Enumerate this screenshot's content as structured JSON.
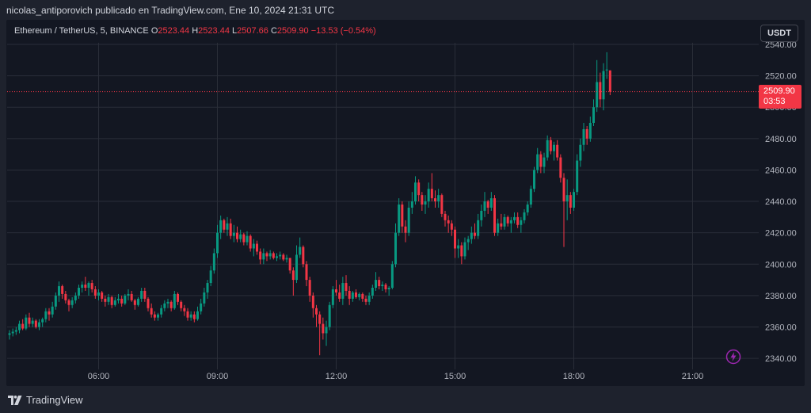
{
  "header": {
    "credit": "nicolas_antiporovich publicado en TradingView.com, Ene 10, 2024 21:31 UTC"
  },
  "legend": {
    "symbol": "Ethereum / TetherUS, 5, BINANCE",
    "o_label": "O",
    "o_value": "2523.44",
    "h_label": "H",
    "h_value": "2523.44",
    "l_label": "L",
    "l_value": "2507.66",
    "c_label": "C",
    "c_value": "2509.90",
    "change": "−13.53 (−0.54%)"
  },
  "toolbar": {
    "currency_label": "USDT"
  },
  "price_tag": {
    "price": "2509.90",
    "countdown": "03:53"
  },
  "footer": {
    "brand": "TradingView"
  },
  "colors": {
    "background": "#131722",
    "up": "#089981",
    "down": "#f23645",
    "grid": "#2a2e39",
    "alert_icon": "#9c27b0"
  },
  "icons": {
    "alert": "lightning-icon",
    "logo": "tradingview-logo-icon"
  },
  "chart_data": {
    "type": "candlestick",
    "grid": true,
    "ylim": [
      2333,
      2541
    ],
    "y_ticks": [
      2340,
      2360,
      2380,
      2400,
      2420,
      2440,
      2460,
      2480,
      2500,
      2520,
      2540
    ],
    "x_tick_labels": [
      "06:00",
      "09:00",
      "12:00",
      "15:00",
      "18:00",
      "21:00"
    ],
    "x_tick_index": [
      27,
      63,
      99,
      135,
      171,
      207
    ],
    "last_price": 2509.9,
    "candles": [
      [
        2355.0,
        2358.0,
        2352.0,
        2356.0
      ],
      [
        2356.0,
        2359.0,
        2354.0,
        2357.0
      ],
      [
        2357.0,
        2360.0,
        2355.0,
        2358.0
      ],
      [
        2358.0,
        2364.0,
        2356.0,
        2362.0
      ],
      [
        2362.0,
        2365.0,
        2358.0,
        2359.0
      ],
      [
        2359.0,
        2368.0,
        2358.0,
        2366.0
      ],
      [
        2366.0,
        2369.0,
        2360.0,
        2362.0
      ],
      [
        2362.0,
        2366.0,
        2360.0,
        2364.0
      ],
      [
        2364.0,
        2365.0,
        2359.0,
        2360.0
      ],
      [
        2360.0,
        2365.0,
        2358.0,
        2363.0
      ],
      [
        2363.0,
        2366.0,
        2360.0,
        2365.0
      ],
      [
        2365.0,
        2372.0,
        2363.0,
        2370.0
      ],
      [
        2370.0,
        2372.0,
        2364.0,
        2368.0
      ],
      [
        2368.0,
        2376.0,
        2366.0,
        2373.0
      ],
      [
        2373.0,
        2382.0,
        2371.0,
        2380.0
      ],
      [
        2380.0,
        2389.0,
        2376.0,
        2386.0
      ],
      [
        2386.0,
        2387.0,
        2378.0,
        2381.0
      ],
      [
        2381.0,
        2383.0,
        2375.0,
        2377.0
      ],
      [
        2377.0,
        2378.0,
        2370.0,
        2374.0
      ],
      [
        2374.0,
        2379.0,
        2372.0,
        2377.0
      ],
      [
        2377.0,
        2382.0,
        2375.0,
        2380.0
      ],
      [
        2380.0,
        2387.0,
        2378.0,
        2385.0
      ],
      [
        2385.0,
        2389.0,
        2382.0,
        2387.0
      ],
      [
        2387.0,
        2392.0,
        2383.0,
        2385.0
      ],
      [
        2385.0,
        2389.0,
        2380.0,
        2388.0
      ],
      [
        2388.0,
        2390.0,
        2382.0,
        2384.0
      ],
      [
        2384.0,
        2386.0,
        2378.0,
        2380.0
      ],
      [
        2380.0,
        2384.0,
        2377.0,
        2382.0
      ],
      [
        2382.0,
        2383.0,
        2376.0,
        2378.0
      ],
      [
        2378.0,
        2380.0,
        2373.0,
        2376.0
      ],
      [
        2376.0,
        2381.0,
        2374.0,
        2379.0
      ],
      [
        2379.0,
        2380.0,
        2372.0,
        2374.0
      ],
      [
        2374.0,
        2379.0,
        2373.0,
        2377.0
      ],
      [
        2377.0,
        2381.0,
        2375.0,
        2378.0
      ],
      [
        2378.0,
        2380.0,
        2373.0,
        2375.0
      ],
      [
        2375.0,
        2381.0,
        2374.0,
        2380.0
      ],
      [
        2380.0,
        2384.0,
        2377.0,
        2381.0
      ],
      [
        2381.0,
        2383.0,
        2376.0,
        2377.0
      ],
      [
        2377.0,
        2378.0,
        2371.0,
        2374.0
      ],
      [
        2374.0,
        2379.0,
        2373.0,
        2378.0
      ],
      [
        2378.0,
        2385.0,
        2376.0,
        2383.0
      ],
      [
        2383.0,
        2385.0,
        2376.0,
        2378.0
      ],
      [
        2378.0,
        2379.0,
        2370.0,
        2372.0
      ],
      [
        2372.0,
        2375.0,
        2366.0,
        2368.0
      ],
      [
        2368.0,
        2370.0,
        2364.0,
        2366.0
      ],
      [
        2366.0,
        2369.0,
        2364.0,
        2368.0
      ],
      [
        2368.0,
        2374.0,
        2366.0,
        2372.0
      ],
      [
        2372.0,
        2377.0,
        2370.0,
        2375.0
      ],
      [
        2375.0,
        2378.0,
        2372.0,
        2376.0
      ],
      [
        2376.0,
        2377.0,
        2370.0,
        2372.0
      ],
      [
        2372.0,
        2383.0,
        2371.0,
        2381.0
      ],
      [
        2381.0,
        2382.0,
        2374.0,
        2376.0
      ],
      [
        2376.0,
        2377.0,
        2370.0,
        2372.0
      ],
      [
        2372.0,
        2374.0,
        2367.0,
        2370.0
      ],
      [
        2370.0,
        2372.0,
        2364.0,
        2366.0
      ],
      [
        2366.0,
        2370.0,
        2364.0,
        2368.0
      ],
      [
        2368.0,
        2370.0,
        2363.0,
        2365.0
      ],
      [
        2365.0,
        2373.0,
        2364.0,
        2370.0
      ],
      [
        2370.0,
        2378.0,
        2368.0,
        2375.0
      ],
      [
        2375.0,
        2385.0,
        2373.0,
        2382.0
      ],
      [
        2382.0,
        2390.0,
        2378.0,
        2388.0
      ],
      [
        2388.0,
        2399.0,
        2386.0,
        2396.0
      ],
      [
        2396.0,
        2410.0,
        2394.0,
        2407.0
      ],
      [
        2407.0,
        2425.0,
        2404.0,
        2420.0
      ],
      [
        2420.0,
        2431.0,
        2416.0,
        2428.0
      ],
      [
        2428.0,
        2429.0,
        2420.0,
        2422.0
      ],
      [
        2422.0,
        2430.0,
        2418.0,
        2426.0
      ],
      [
        2426.0,
        2429.0,
        2416.0,
        2418.0
      ],
      [
        2418.0,
        2425.0,
        2414.0,
        2420.0
      ],
      [
        2420.0,
        2424.0,
        2414.0,
        2416.0
      ],
      [
        2416.0,
        2422.0,
        2414.0,
        2419.0
      ],
      [
        2419.0,
        2420.0,
        2412.0,
        2414.0
      ],
      [
        2414.0,
        2421.0,
        2412.0,
        2418.0
      ],
      [
        2418.0,
        2419.0,
        2408.0,
        2410.0
      ],
      [
        2410.0,
        2416.0,
        2405.0,
        2413.0
      ],
      [
        2413.0,
        2415.0,
        2406.0,
        2408.0
      ],
      [
        2408.0,
        2410.0,
        2400.0,
        2403.0
      ],
      [
        2403.0,
        2410.0,
        2400.0,
        2407.0
      ],
      [
        2407.0,
        2408.0,
        2402.0,
        2405.0
      ],
      [
        2405.0,
        2409.0,
        2403.0,
        2407.0
      ],
      [
        2407.0,
        2408.0,
        2403.0,
        2404.0
      ],
      [
        2404.0,
        2407.0,
        2402.0,
        2405.0
      ],
      [
        2405.0,
        2408.0,
        2403.0,
        2406.0
      ],
      [
        2406.0,
        2407.0,
        2402.0,
        2403.0
      ],
      [
        2403.0,
        2406.0,
        2401.0,
        2404.0
      ],
      [
        2404.0,
        2404.0,
        2394.0,
        2396.0
      ],
      [
        2396.0,
        2398.0,
        2380.0,
        2390.0
      ],
      [
        2390.0,
        2412.0,
        2388.0,
        2406.0
      ],
      [
        2406.0,
        2417.0,
        2404.0,
        2411.0
      ],
      [
        2411.0,
        2412.0,
        2398.0,
        2400.0
      ],
      [
        2400.0,
        2402.0,
        2386.0,
        2390.0
      ],
      [
        2390.0,
        2392.0,
        2376.0,
        2380.0
      ],
      [
        2380.0,
        2382.0,
        2366.0,
        2372.0
      ],
      [
        2372.0,
        2374.0,
        2360.0,
        2368.0
      ],
      [
        2368.0,
        2370.0,
        2342.0,
        2362.0
      ],
      [
        2362.0,
        2366.0,
        2352.0,
        2356.0
      ],
      [
        2356.0,
        2364.0,
        2348.0,
        2360.0
      ],
      [
        2360.0,
        2376.0,
        2358.0,
        2374.0
      ],
      [
        2374.0,
        2386.0,
        2372.0,
        2384.0
      ],
      [
        2384.0,
        2390.0,
        2380.0,
        2382.0
      ],
      [
        2382.0,
        2387.0,
        2376.0,
        2378.0
      ],
      [
        2378.0,
        2392.0,
        2374.0,
        2388.0
      ],
      [
        2388.0,
        2393.0,
        2380.0,
        2383.0
      ],
      [
        2383.0,
        2386.0,
        2374.0,
        2378.0
      ],
      [
        2378.0,
        2383.0,
        2376.0,
        2382.0
      ],
      [
        2382.0,
        2384.0,
        2378.0,
        2379.0
      ],
      [
        2379.0,
        2382.0,
        2377.0,
        2381.0
      ],
      [
        2381.0,
        2382.0,
        2376.0,
        2378.0
      ],
      [
        2378.0,
        2380.0,
        2374.0,
        2376.0
      ],
      [
        2376.0,
        2382.0,
        2374.0,
        2380.0
      ],
      [
        2380.0,
        2387.0,
        2378.0,
        2385.0
      ],
      [
        2385.0,
        2395.0,
        2383.0,
        2390.0
      ],
      [
        2390.0,
        2392.0,
        2384.0,
        2386.0
      ],
      [
        2386.0,
        2389.0,
        2383.0,
        2387.0
      ],
      [
        2387.0,
        2388.0,
        2382.0,
        2384.0
      ],
      [
        2384.0,
        2386.0,
        2380.0,
        2385.0
      ],
      [
        2385.0,
        2402.0,
        2384.0,
        2400.0
      ],
      [
        2400.0,
        2426.0,
        2398.0,
        2420.0
      ],
      [
        2420.0,
        2442.0,
        2418.0,
        2438.0
      ],
      [
        2438.0,
        2440.0,
        2420.0,
        2424.0
      ],
      [
        2424.0,
        2428.0,
        2414.0,
        2420.0
      ],
      [
        2420.0,
        2440.0,
        2418.0,
        2436.0
      ],
      [
        2436.0,
        2446.0,
        2432.0,
        2440.0
      ],
      [
        2440.0,
        2456.0,
        2438.0,
        2452.0
      ],
      [
        2452.0,
        2454.0,
        2440.0,
        2444.0
      ],
      [
        2444.0,
        2446.0,
        2434.0,
        2438.0
      ],
      [
        2438.0,
        2444.0,
        2432.0,
        2440.0
      ],
      [
        2440.0,
        2452.0,
        2436.0,
        2448.0
      ],
      [
        2448.0,
        2458.0,
        2440.0,
        2442.0
      ],
      [
        2442.0,
        2447.0,
        2436.0,
        2440.0
      ],
      [
        2440.0,
        2448.0,
        2436.0,
        2444.0
      ],
      [
        2444.0,
        2445.0,
        2430.0,
        2432.0
      ],
      [
        2432.0,
        2434.0,
        2424.0,
        2428.0
      ],
      [
        2428.0,
        2431.0,
        2420.0,
        2426.0
      ],
      [
        2426.0,
        2428.0,
        2418.0,
        2422.0
      ],
      [
        2422.0,
        2424.0,
        2404.0,
        2410.0
      ],
      [
        2410.0,
        2416.0,
        2404.0,
        2412.0
      ],
      [
        2412.0,
        2414.0,
        2400.0,
        2405.0
      ],
      [
        2405.0,
        2417.0,
        2403.0,
        2414.0
      ],
      [
        2414.0,
        2418.0,
        2409.0,
        2416.0
      ],
      [
        2416.0,
        2424.0,
        2413.0,
        2420.0
      ],
      [
        2420.0,
        2426.0,
        2416.0,
        2418.0
      ],
      [
        2418.0,
        2432.0,
        2416.0,
        2428.0
      ],
      [
        2428.0,
        2438.0,
        2424.0,
        2434.0
      ],
      [
        2434.0,
        2446.0,
        2430.0,
        2440.0
      ],
      [
        2440.0,
        2441.0,
        2432.0,
        2436.0
      ],
      [
        2436.0,
        2446.0,
        2434.0,
        2442.0
      ],
      [
        2442.0,
        2444.0,
        2418.0,
        2420.0
      ],
      [
        2420.0,
        2429.0,
        2418.0,
        2426.0
      ],
      [
        2426.0,
        2432.0,
        2422.0,
        2424.0
      ],
      [
        2424.0,
        2432.0,
        2422.0,
        2430.0
      ],
      [
        2430.0,
        2431.0,
        2424.0,
        2426.0
      ],
      [
        2426.0,
        2430.0,
        2420.0,
        2428.0
      ],
      [
        2428.0,
        2433.0,
        2426.0,
        2430.0
      ],
      [
        2430.0,
        2433.0,
        2423.0,
        2425.0
      ],
      [
        2425.0,
        2430.0,
        2420.0,
        2428.0
      ],
      [
        2428.0,
        2435.0,
        2426.0,
        2433.0
      ],
      [
        2433.0,
        2440.0,
        2431.0,
        2438.0
      ],
      [
        2438.0,
        2450.0,
        2436.0,
        2448.0
      ],
      [
        2448.0,
        2462.0,
        2446.0,
        2460.0
      ],
      [
        2460.0,
        2474.0,
        2458.0,
        2470.0
      ],
      [
        2470.0,
        2472.0,
        2458.0,
        2462.0
      ],
      [
        2462.0,
        2471.0,
        2458.0,
        2468.0
      ],
      [
        2468.0,
        2482.0,
        2466.0,
        2479.0
      ],
      [
        2479.0,
        2481.0,
        2470.0,
        2472.0
      ],
      [
        2472.0,
        2478.0,
        2466.0,
        2476.0
      ],
      [
        2476.0,
        2479.0,
        2466.0,
        2468.0
      ],
      [
        2468.0,
        2470.0,
        2452.0,
        2455.0
      ],
      [
        2455.0,
        2458.0,
        2411.0,
        2440.0
      ],
      [
        2440.0,
        2454.0,
        2428.0,
        2444.0
      ],
      [
        2444.0,
        2446.0,
        2432.0,
        2436.0
      ],
      [
        2436.0,
        2448.0,
        2434.0,
        2446.0
      ],
      [
        2446.0,
        2470.0,
        2444.0,
        2466.0
      ],
      [
        2466.0,
        2480.0,
        2462.0,
        2476.0
      ],
      [
        2476.0,
        2490.0,
        2472.0,
        2486.0
      ],
      [
        2486.0,
        2488.0,
        2476.0,
        2480.0
      ],
      [
        2480.0,
        2494.0,
        2478.0,
        2490.0
      ],
      [
        2490.0,
        2505.0,
        2488.0,
        2500.0
      ],
      [
        2500.0,
        2530.0,
        2497.0,
        2516.0
      ],
      [
        2516.0,
        2522.0,
        2500.0,
        2505.0
      ],
      [
        2505.0,
        2528.0,
        2498.0,
        2523.0
      ],
      [
        2523.44,
        2535.0,
        2518.0,
        2524.0
      ],
      [
        2523.44,
        2523.44,
        2507.66,
        2509.9
      ]
    ]
  }
}
